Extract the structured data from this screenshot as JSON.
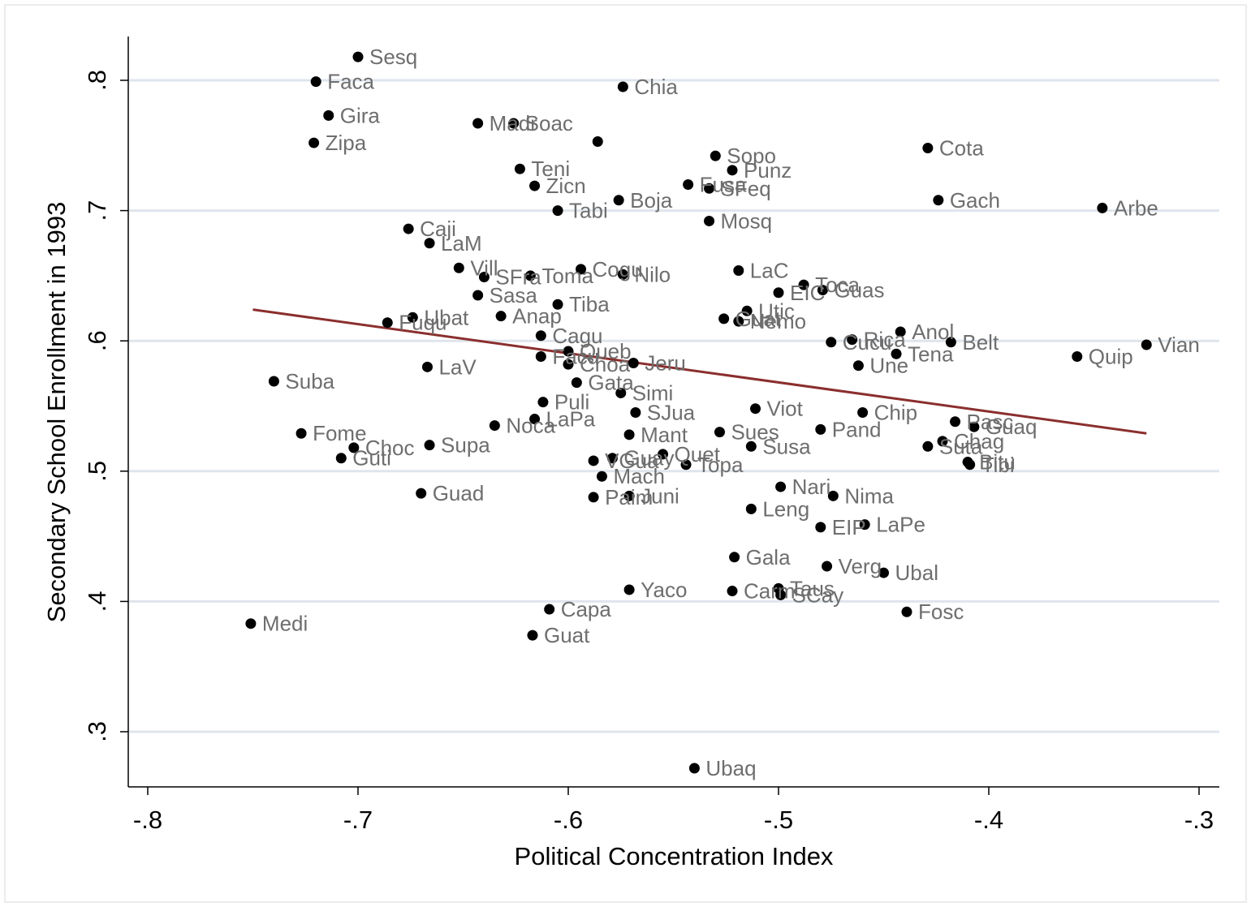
{
  "chart_data": {
    "type": "scatter",
    "title": "",
    "xlabel": "Political Concentration Index",
    "ylabel": "Secondary School Enrollment in 1993",
    "xlim": [
      -0.81,
      -0.29
    ],
    "ylim": [
      0.26,
      0.835
    ],
    "x_ticks": [
      -0.8,
      -0.7,
      -0.6,
      -0.5,
      -0.4,
      -0.3
    ],
    "x_tick_labels": [
      "-.8",
      "-.7",
      "-.6",
      "-.5",
      "-.4",
      "-.3"
    ],
    "y_ticks": [
      0.3,
      0.4,
      0.5,
      0.6,
      0.7,
      0.8
    ],
    "y_tick_labels": [
      ".3",
      ".4",
      ".5",
      ".6",
      ".7",
      ".8"
    ],
    "grid": "horizontal",
    "colors": {
      "points": "#000000",
      "labels": "#6e6e6e",
      "fit_line": "#8b2e2e",
      "grid": "#dfe5ec"
    },
    "fit_line": {
      "x": [
        -0.75,
        -0.325
      ],
      "y": [
        0.624,
        0.529
      ]
    },
    "points": [
      {
        "label": "Sesq",
        "x": -0.7,
        "y": 0.818
      },
      {
        "label": "Faca",
        "x": -0.72,
        "y": 0.799
      },
      {
        "label": "Gira",
        "x": -0.714,
        "y": 0.773
      },
      {
        "label": "Zipa",
        "x": -0.721,
        "y": 0.752
      },
      {
        "label": "Chia",
        "x": -0.574,
        "y": 0.795
      },
      {
        "label": "Madr",
        "x": -0.643,
        "y": 0.767
      },
      {
        "label": "Soac",
        "x": -0.626,
        "y": 0.767
      },
      {
        "label": "",
        "x": -0.586,
        "y": 0.753
      },
      {
        "label": "Cota",
        "x": -0.429,
        "y": 0.748
      },
      {
        "label": "Sopo",
        "x": -0.53,
        "y": 0.742
      },
      {
        "label": "Teni",
        "x": -0.623,
        "y": 0.732
      },
      {
        "label": "Punz",
        "x": -0.522,
        "y": 0.731
      },
      {
        "label": "Fusa",
        "x": -0.543,
        "y": 0.72
      },
      {
        "label": "SFeq",
        "x": -0.533,
        "y": 0.717
      },
      {
        "label": "Zicn",
        "x": -0.616,
        "y": 0.719
      },
      {
        "label": "Boja",
        "x": -0.576,
        "y": 0.708
      },
      {
        "label": "Gach",
        "x": -0.424,
        "y": 0.708
      },
      {
        "label": "Tabi",
        "x": -0.605,
        "y": 0.7
      },
      {
        "label": "Arbe",
        "x": -0.346,
        "y": 0.702
      },
      {
        "label": "Mosq",
        "x": -0.533,
        "y": 0.692
      },
      {
        "label": "Caji",
        "x": -0.676,
        "y": 0.686
      },
      {
        "label": "LaM",
        "x": -0.666,
        "y": 0.675
      },
      {
        "label": "Vill",
        "x": -0.652,
        "y": 0.656
      },
      {
        "label": "SFra",
        "x": -0.64,
        "y": 0.649
      },
      {
        "label": "Toma",
        "x": -0.618,
        "y": 0.65
      },
      {
        "label": "Cogu",
        "x": -0.594,
        "y": 0.655
      },
      {
        "label": "Nilo",
        "x": -0.574,
        "y": 0.651
      },
      {
        "label": "LaC",
        "x": -0.519,
        "y": 0.654
      },
      {
        "label": "Toca",
        "x": -0.488,
        "y": 0.643
      },
      {
        "label": "Guas",
        "x": -0.479,
        "y": 0.639
      },
      {
        "label": "EIC",
        "x": -0.5,
        "y": 0.637
      },
      {
        "label": "Sasa",
        "x": -0.643,
        "y": 0.635
      },
      {
        "label": "Tiba",
        "x": -0.605,
        "y": 0.628
      },
      {
        "label": "Anap",
        "x": -0.632,
        "y": 0.619
      },
      {
        "label": "Ubat",
        "x": -0.674,
        "y": 0.618
      },
      {
        "label": "Fuqu",
        "x": -0.686,
        "y": 0.614
      },
      {
        "label": "Utic",
        "x": -0.515,
        "y": 0.623
      },
      {
        "label": "Guat",
        "x": -0.526,
        "y": 0.617
      },
      {
        "label": "Nemo",
        "x": -0.519,
        "y": 0.615
      },
      {
        "label": "Anol",
        "x": -0.442,
        "y": 0.607
      },
      {
        "label": "Cagu",
        "x": -0.613,
        "y": 0.604
      },
      {
        "label": "Cucu",
        "x": -0.475,
        "y": 0.599
      },
      {
        "label": "Rica",
        "x": -0.465,
        "y": 0.601
      },
      {
        "label": "Belt",
        "x": -0.418,
        "y": 0.599
      },
      {
        "label": "Vian",
        "x": -0.325,
        "y": 0.597
      },
      {
        "label": "Queb",
        "x": -0.6,
        "y": 0.592
      },
      {
        "label": "Facu",
        "x": -0.613,
        "y": 0.588
      },
      {
        "label": "Tena",
        "x": -0.444,
        "y": 0.59
      },
      {
        "label": "Quip",
        "x": -0.358,
        "y": 0.588
      },
      {
        "label": "Choa",
        "x": -0.6,
        "y": 0.582
      },
      {
        "label": "Jeru",
        "x": -0.569,
        "y": 0.583
      },
      {
        "label": "Une",
        "x": -0.462,
        "y": 0.581
      },
      {
        "label": "LaV",
        "x": -0.667,
        "y": 0.58
      },
      {
        "label": "Suba",
        "x": -0.74,
        "y": 0.569
      },
      {
        "label": "Gata",
        "x": -0.596,
        "y": 0.568
      },
      {
        "label": "Simi",
        "x": -0.575,
        "y": 0.56
      },
      {
        "label": "Puli",
        "x": -0.612,
        "y": 0.553
      },
      {
        "label": "Viot",
        "x": -0.511,
        "y": 0.548
      },
      {
        "label": "SJua",
        "x": -0.568,
        "y": 0.545
      },
      {
        "label": "Chip",
        "x": -0.46,
        "y": 0.545
      },
      {
        "label": "LaPa",
        "x": -0.616,
        "y": 0.54
      },
      {
        "label": "Pasc",
        "x": -0.416,
        "y": 0.538
      },
      {
        "label": "Noca",
        "x": -0.635,
        "y": 0.535
      },
      {
        "label": "Guaq",
        "x": -0.407,
        "y": 0.534
      },
      {
        "label": "Pand",
        "x": -0.48,
        "y": 0.532
      },
      {
        "label": "Fome",
        "x": -0.727,
        "y": 0.529
      },
      {
        "label": "Sues",
        "x": -0.528,
        "y": 0.53
      },
      {
        "label": "Mant",
        "x": -0.571,
        "y": 0.528
      },
      {
        "label": "Chag",
        "x": -0.422,
        "y": 0.523
      },
      {
        "label": "Supa",
        "x": -0.666,
        "y": 0.52
      },
      {
        "label": "Suta",
        "x": -0.429,
        "y": 0.519
      },
      {
        "label": "Susa",
        "x": -0.513,
        "y": 0.519
      },
      {
        "label": "Choc",
        "x": -0.702,
        "y": 0.518
      },
      {
        "label": "Quet",
        "x": -0.555,
        "y": 0.513
      },
      {
        "label": "Guti",
        "x": -0.708,
        "y": 0.51
      },
      {
        "label": "Guay",
        "x": -0.579,
        "y": 0.51
      },
      {
        "label": "VGua",
        "x": -0.588,
        "y": 0.508
      },
      {
        "label": "Bitu",
        "x": -0.41,
        "y": 0.507
      },
      {
        "label": "Tibi",
        "x": -0.409,
        "y": 0.505
      },
      {
        "label": "Topa",
        "x": -0.544,
        "y": 0.505
      },
      {
        "label": "Mach",
        "x": -0.584,
        "y": 0.496
      },
      {
        "label": "Nari",
        "x": -0.499,
        "y": 0.488
      },
      {
        "label": "Guad",
        "x": -0.67,
        "y": 0.483
      },
      {
        "label": "Nima",
        "x": -0.474,
        "y": 0.481
      },
      {
        "label": "Paim",
        "x": -0.588,
        "y": 0.48
      },
      {
        "label": "Juni",
        "x": -0.571,
        "y": 0.481
      },
      {
        "label": "Leng",
        "x": -0.513,
        "y": 0.471
      },
      {
        "label": "LaPe",
        "x": -0.459,
        "y": 0.459
      },
      {
        "label": "EIP",
        "x": -0.48,
        "y": 0.457
      },
      {
        "label": "Gala",
        "x": -0.521,
        "y": 0.434
      },
      {
        "label": "Verg",
        "x": -0.477,
        "y": 0.427
      },
      {
        "label": "Ubal",
        "x": -0.45,
        "y": 0.422
      },
      {
        "label": "Yaco",
        "x": -0.571,
        "y": 0.409
      },
      {
        "label": "Taus",
        "x": -0.5,
        "y": 0.41
      },
      {
        "label": "Carm",
        "x": -0.522,
        "y": 0.408
      },
      {
        "label": "SCay",
        "x": -0.499,
        "y": 0.405
      },
      {
        "label": "Capa",
        "x": -0.609,
        "y": 0.394
      },
      {
        "label": "Fosc",
        "x": -0.439,
        "y": 0.392
      },
      {
        "label": "Medi",
        "x": -0.751,
        "y": 0.383
      },
      {
        "label": "Guat",
        "x": -0.617,
        "y": 0.374
      },
      {
        "label": "Ubaq",
        "x": -0.54,
        "y": 0.272
      }
    ]
  }
}
